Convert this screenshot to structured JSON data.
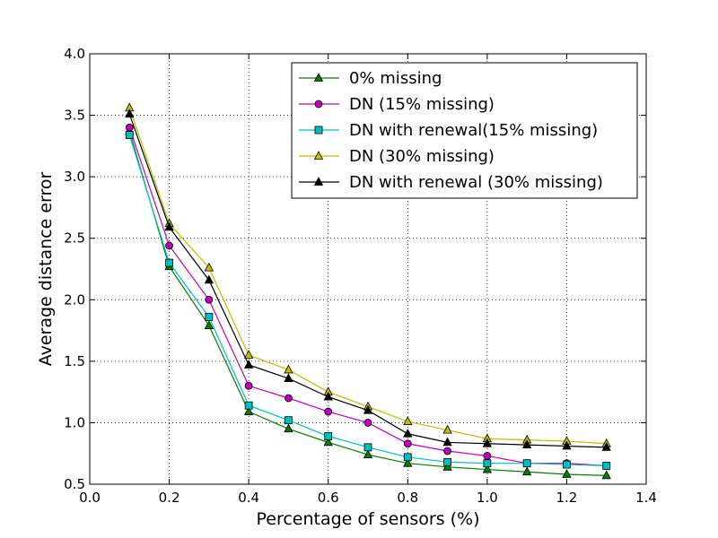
{
  "chart_data": {
    "type": "line",
    "title": "",
    "xlabel": "Percentage of sensors (%)",
    "ylabel": "Average distance error",
    "xlim": [
      0.0,
      1.4
    ],
    "ylim": [
      0.5,
      4.0
    ],
    "xticks": [
      "0.0",
      "0.2",
      "0.4",
      "0.6",
      "0.8",
      "1.0",
      "1.2",
      "1.4"
    ],
    "yticks": [
      "0.5",
      "1.0",
      "1.5",
      "2.0",
      "2.5",
      "3.0",
      "3.5",
      "4.0"
    ],
    "grid": true,
    "legend_position": "top-right",
    "x": [
      0.1,
      0.2,
      0.3,
      0.4,
      0.5,
      0.6,
      0.7,
      0.8,
      0.9,
      1.0,
      1.1,
      1.2,
      1.3
    ],
    "series": [
      {
        "name": "0% missing",
        "color": "#007f00",
        "marker": "triangle",
        "values": [
          3.37,
          2.27,
          1.79,
          1.09,
          0.95,
          0.84,
          0.74,
          0.67,
          0.64,
          0.62,
          0.6,
          0.58,
          0.57
        ]
      },
      {
        "name": "DN (15% missing)",
        "color": "#bf00bf",
        "marker": "circle",
        "values": [
          3.4,
          2.44,
          2.0,
          1.3,
          1.2,
          1.09,
          1.0,
          0.83,
          0.77,
          0.73,
          0.67,
          0.67,
          0.65
        ]
      },
      {
        "name": "DN with renewal(15% missing)",
        "color": "#00bfbf",
        "marker": "square",
        "values": [
          3.34,
          2.3,
          1.86,
          1.14,
          1.02,
          0.89,
          0.8,
          0.72,
          0.68,
          0.67,
          0.67,
          0.66,
          0.65
        ]
      },
      {
        "name": "DN (30% missing)",
        "color": "#bfbf00",
        "marker": "triangle",
        "values": [
          3.56,
          2.62,
          2.26,
          1.55,
          1.43,
          1.25,
          1.13,
          1.01,
          0.94,
          0.87,
          0.86,
          0.85,
          0.83
        ]
      },
      {
        "name": "DN with renewal (30% missing)",
        "color": "#000000",
        "marker": "triangle",
        "values": [
          3.51,
          2.59,
          2.16,
          1.47,
          1.36,
          1.21,
          1.1,
          0.91,
          0.84,
          0.83,
          0.82,
          0.81,
          0.8
        ]
      }
    ]
  }
}
